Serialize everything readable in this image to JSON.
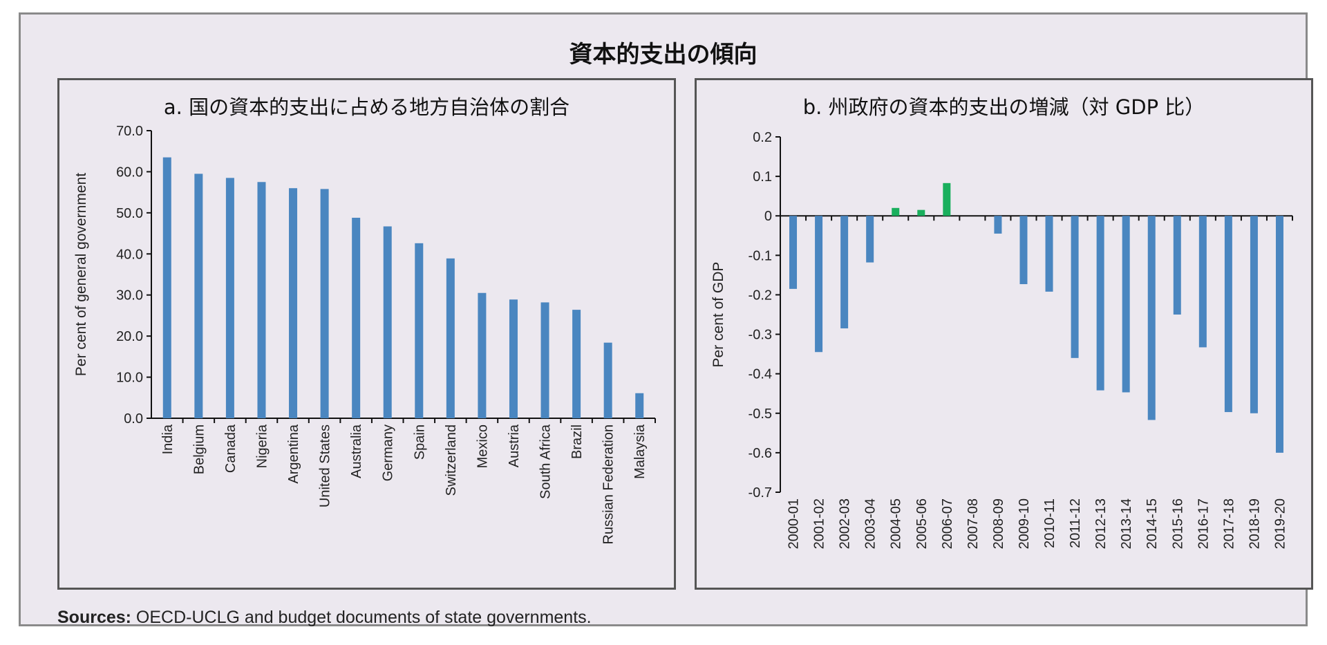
{
  "title": "資本的支出の傾向",
  "sources": {
    "label": "Sources:",
    "text": " OECD-UCLG and budget documents of state governments."
  },
  "colors": {
    "bar": "#4a86c0",
    "bar_positive_b": "#1aaf5d",
    "background": "#ece8ef"
  },
  "chart_data": [
    {
      "id": "a",
      "type": "bar",
      "title": "a. 国の資本的支出に占める地方自治体の割合",
      "xlabel": "",
      "ylabel": "Per cent of general government",
      "ylim": [
        0,
        70
      ],
      "yticks": [
        "0.0",
        "10.0",
        "20.0",
        "30.0",
        "40.0",
        "50.0",
        "60.0",
        "70.0"
      ],
      "ytick_values": [
        0,
        10,
        20,
        30,
        40,
        50,
        60,
        70
      ],
      "categories": [
        "India",
        "Belgium",
        "Canada",
        "Nigeria",
        "Argentina",
        "United States",
        "Australia",
        "Germany",
        "Spain",
        "Switzerland",
        "Mexico",
        "Austria",
        "South Africa",
        "Brazil",
        "Russian Federation",
        "Malaysia"
      ],
      "values": [
        63.5,
        59.5,
        58.5,
        57.5,
        56.0,
        55.8,
        48.8,
        46.7,
        42.6,
        38.9,
        30.5,
        28.9,
        28.2,
        26.4,
        18.4,
        6.1
      ],
      "grid": false
    },
    {
      "id": "b",
      "type": "bar",
      "title": "b. 州政府の資本的支出の増減（対 GDP 比）",
      "xlabel": "",
      "ylabel": "Per cent of GDP",
      "ylim": [
        -0.7,
        0.2
      ],
      "yticks": [
        "0.2",
        "0.1",
        "0",
        "-0.1",
        "-0.2",
        "-0.3",
        "-0.4",
        "-0.5",
        "-0.6",
        "-0.7"
      ],
      "ytick_values": [
        0.2,
        0.1,
        0,
        -0.1,
        -0.2,
        -0.3,
        -0.4,
        -0.5,
        -0.6,
        -0.7
      ],
      "categories": [
        "2000-01",
        "2001-02",
        "2002-03",
        "2003-04",
        "2004-05",
        "2005-06",
        "2006-07",
        "2007-08",
        "2008-09",
        "2009-10",
        "2010-11",
        "2011-12",
        "2012-13",
        "2013-14",
        "2014-15",
        "2015-16",
        "2016-17",
        "2017-18",
        "2018-19",
        "2019-20"
      ],
      "values": [
        -0.185,
        -0.345,
        -0.285,
        -0.118,
        0.02,
        0.015,
        0.083,
        0.0,
        -0.045,
        -0.173,
        -0.192,
        -0.36,
        -0.442,
        -0.447,
        -0.517,
        -0.25,
        -0.333,
        -0.497,
        -0.5,
        -0.6
      ],
      "grid": false
    }
  ]
}
